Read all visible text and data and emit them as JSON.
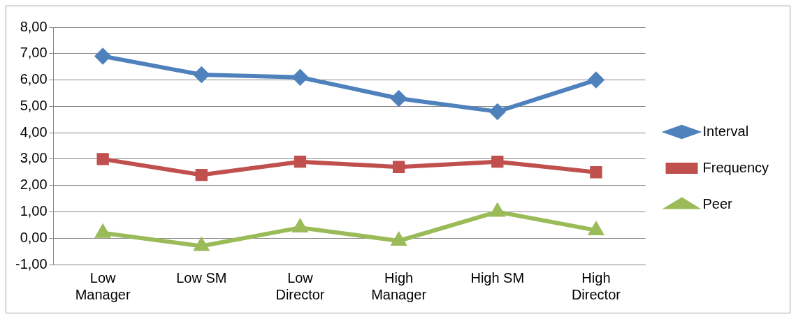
{
  "chart_data": {
    "type": "line",
    "categories": [
      "Low Manager",
      "Low SM",
      "Low Director",
      "High Manager",
      "High SM",
      "High Director"
    ],
    "series": [
      {
        "name": "Interval",
        "color": "#4f81bd",
        "marker": "diamond",
        "values": [
          6.9,
          6.2,
          6.1,
          5.3,
          4.8,
          6.0
        ]
      },
      {
        "name": "Frequency",
        "color": "#c0504d",
        "marker": "square",
        "values": [
          3.0,
          2.4,
          2.9,
          2.7,
          2.9,
          2.5
        ]
      },
      {
        "name": "Peer",
        "color": "#9bbb59",
        "marker": "triangle",
        "values": [
          0.2,
          -0.3,
          0.4,
          -0.1,
          1.0,
          0.3
        ]
      }
    ],
    "ylim": [
      -1,
      8
    ],
    "yticks": [
      {
        "value": -1,
        "label": "-1,00"
      },
      {
        "value": 0,
        "label": "0,00"
      },
      {
        "value": 1,
        "label": "1,00"
      },
      {
        "value": 2,
        "label": "2,00"
      },
      {
        "value": 3,
        "label": "3,00"
      },
      {
        "value": 4,
        "label": "4,00"
      },
      {
        "value": 5,
        "label": "5,00"
      },
      {
        "value": 6,
        "label": "6,00"
      },
      {
        "value": 7,
        "label": "7,00"
      },
      {
        "value": 8,
        "label": "8,00"
      }
    ],
    "grid": "y",
    "legend": "right"
  }
}
